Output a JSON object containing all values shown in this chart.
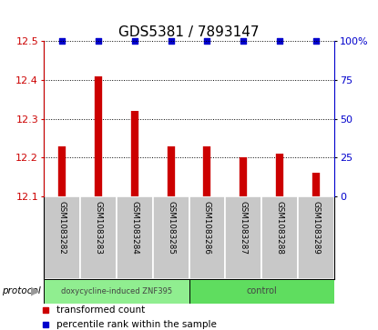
{
  "title": "GDS5381 / 7893147",
  "samples": [
    "GSM1083282",
    "GSM1083283",
    "GSM1083284",
    "GSM1083285",
    "GSM1083286",
    "GSM1083287",
    "GSM1083288",
    "GSM1083289"
  ],
  "red_values": [
    12.23,
    12.41,
    12.32,
    12.23,
    12.23,
    12.2,
    12.21,
    12.16
  ],
  "blue_values": [
    100,
    100,
    100,
    100,
    100,
    100,
    100,
    100
  ],
  "ylim_left": [
    12.1,
    12.5
  ],
  "ylim_right": [
    0,
    100
  ],
  "yticks_left": [
    12.1,
    12.2,
    12.3,
    12.4,
    12.5
  ],
  "yticks_right": [
    0,
    25,
    50,
    75,
    100
  ],
  "groups": [
    {
      "label": "doxycycline-induced ZNF395",
      "start": 0,
      "end": 4,
      "color": "#90ee90"
    },
    {
      "label": "control",
      "start": 4,
      "end": 8,
      "color": "#5fdd5f"
    }
  ],
  "protocol_label": "protocol",
  "legend_red": "transformed count",
  "legend_blue": "percentile rank within the sample",
  "red_color": "#cc0000",
  "blue_color": "#0000cc",
  "bg_plot": "#ffffff",
  "bg_xlabels": "#c8c8c8",
  "title_fontsize": 11,
  "tick_fontsize": 8
}
